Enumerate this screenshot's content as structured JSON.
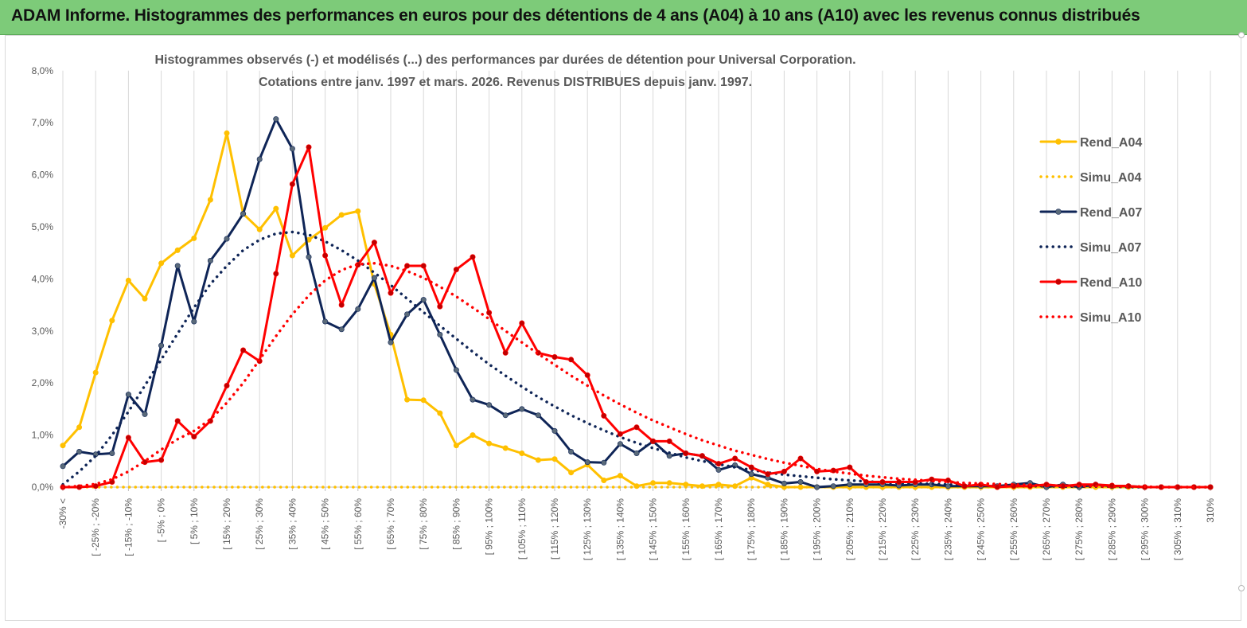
{
  "header": {
    "title": "ADAM Informe. Histogrammes des performances en euros pour des détentions de 4 ans (A04) à 10 ans (A10) avec les revenus connus distribués"
  },
  "chart_data": {
    "type": "line",
    "title_line1": "Histogrammes observés (-) et modélisés (...)  des performances par durées de détention pour Universal Corporation.",
    "title_line2": "Cotations entre janv. 1997 et mars. 2026. Revenus DISTRIBUES depuis janv. 1997.",
    "xlabel": "",
    "ylabel": "",
    "ylim": [
      0,
      8
    ],
    "y_ticks": [
      "0,0%",
      "1,0%",
      "2,0%",
      "3,0%",
      "4,0%",
      "5,0%",
      "6,0%",
      "7,0%",
      "8,0%"
    ],
    "grid": "vertical",
    "legend_position": "right",
    "x_tick_labels": [
      "-30% <",
      "[ -25% ; -20%",
      "[ -15% ; -10%",
      "[ -5% ; 0%",
      "[ 5% ; 10%",
      "[ 15% ; 20%",
      "[ 25% ; 30%",
      "[ 35% ; 40%",
      "[ 45% ; 50%",
      "[ 55% ; 60%",
      "[ 65% ; 70%",
      "[ 75% ; 80%",
      "[ 85% ; 90%",
      "[ 95% ; 100%",
      "[ 105% ; 110%",
      "[ 115% ; 120%",
      "[ 125% ; 130%",
      "[ 135% ; 140%",
      "[ 145% ; 150%",
      "[ 155% ; 160%",
      "[ 165% ; 170%",
      "[ 175% ; 180%",
      "[ 185% ; 190%",
      "[ 195% ; 200%",
      "[ 205% ; 210%",
      "[ 215% ; 220%",
      "[ 225% ; 230%",
      "[ 235% ; 240%",
      "[ 245% ; 250%",
      "[ 255% ; 260%",
      "[ 265% ; 270%",
      "[ 275% ; 280%",
      "[ 285% ; 290%",
      "[ 295% ; 300%",
      "[ 305% ; 310%"
    ],
    "x_tick_indices": [
      0,
      2,
      4,
      6,
      8,
      10,
      12,
      14,
      16,
      18,
      20,
      22,
      24,
      26,
      28,
      30,
      32,
      34,
      36,
      38,
      40,
      42,
      44,
      46,
      48,
      50,
      52,
      54,
      56,
      58,
      60,
      62,
      64,
      66,
      68
    ],
    "extra_tick_labels": [
      "310%"
    ],
    "category_count": 71,
    "series": [
      {
        "name": "Rend_A04",
        "color": "#ffc000",
        "style": "solid",
        "markers": true,
        "values": [
          0.8,
          1.15,
          2.2,
          3.2,
          3.97,
          3.62,
          4.3,
          4.55,
          4.78,
          5.52,
          6.8,
          5.25,
          4.95,
          5.35,
          4.45,
          4.75,
          4.98,
          5.23,
          5.3,
          3.9,
          2.93,
          1.68,
          1.67,
          1.42,
          0.8,
          1.0,
          0.84,
          0.75,
          0.65,
          0.52,
          0.54,
          0.28,
          0.43,
          0.13,
          0.22,
          0.02,
          0.08,
          0.08,
          0.05,
          0.02,
          0.05,
          0.02,
          0.18,
          0.05,
          0.0,
          0.0,
          0.0,
          0.0,
          0.0,
          0.0,
          0.0,
          0.0,
          0.0,
          0.0,
          0.0,
          0.0,
          0.0,
          0.0,
          0.0,
          0.0,
          0.0,
          0.0,
          0.0,
          0.0,
          0.0,
          0.0,
          0.0,
          0.0,
          0.0,
          0.0,
          0.0
        ]
      },
      {
        "name": "Simu_A04",
        "color": "#ffc000",
        "style": "dotted",
        "markers": false,
        "values": [
          0.0,
          0.0,
          0.0,
          0.0,
          0.0,
          0.0,
          0.0,
          0.0,
          0.0,
          0.0,
          0.0,
          0.0,
          0.0,
          0.0,
          0.0,
          0.0,
          0.0,
          0.0,
          0.0,
          0.0,
          0.0,
          0.0,
          0.0,
          0.0,
          0.0,
          0.0,
          0.0,
          0.0,
          0.0,
          0.0,
          0.0,
          0.0,
          0.0,
          0.0,
          0.0,
          0.0,
          0.0,
          0.0,
          0.0,
          0.0,
          0.0,
          0.0,
          0.0,
          0.0,
          0.0,
          0.0,
          0.0,
          0.0,
          0.0,
          0.0,
          0.0,
          0.0,
          0.0,
          0.0,
          0.0,
          0.0,
          0.0,
          0.0,
          0.0,
          0.0,
          0.0,
          0.0,
          0.0,
          0.0,
          0.0,
          0.0,
          0.0,
          0.0,
          0.0,
          0.0,
          0.0
        ]
      },
      {
        "name": "Rend_A07",
        "color": "#0f2557",
        "marker_color": "#5a6a7a",
        "style": "solid",
        "markers": true,
        "values": [
          0.4,
          0.68,
          0.63,
          0.65,
          1.78,
          1.4,
          2.72,
          4.25,
          3.18,
          4.35,
          4.77,
          5.25,
          6.3,
          7.07,
          6.5,
          4.42,
          3.18,
          3.03,
          3.42,
          4.02,
          2.78,
          3.32,
          3.6,
          2.93,
          2.25,
          1.68,
          1.58,
          1.38,
          1.5,
          1.38,
          1.08,
          0.68,
          0.48,
          0.47,
          0.83,
          0.65,
          0.88,
          0.6,
          0.65,
          0.6,
          0.33,
          0.42,
          0.25,
          0.18,
          0.07,
          0.1,
          0.0,
          0.02,
          0.05,
          0.05,
          0.05,
          0.03,
          0.05,
          0.05,
          0.02,
          0.02,
          0.02,
          0.02,
          0.05,
          0.08,
          0.0,
          0.05,
          0.0,
          0.05,
          0.02,
          0.02,
          0.0,
          0.0,
          0.0,
          0.0,
          0.0
        ]
      },
      {
        "name": "Simu_A07",
        "color": "#0f2557",
        "style": "dotted",
        "markers": false,
        "values": [
          0.05,
          0.3,
          0.6,
          1.0,
          1.45,
          1.95,
          2.45,
          2.95,
          3.45,
          3.9,
          4.25,
          4.55,
          4.75,
          4.87,
          4.9,
          4.85,
          4.72,
          4.55,
          4.35,
          4.12,
          3.88,
          3.62,
          3.36,
          3.1,
          2.85,
          2.6,
          2.36,
          2.14,
          1.93,
          1.73,
          1.55,
          1.38,
          1.23,
          1.09,
          0.96,
          0.85,
          0.75,
          0.66,
          0.57,
          0.5,
          0.44,
          0.38,
          0.33,
          0.28,
          0.24,
          0.21,
          0.18,
          0.15,
          0.13,
          0.11,
          0.09,
          0.08,
          0.07,
          0.06,
          0.05,
          0.04,
          0.03,
          0.03,
          0.02,
          0.02,
          0.02,
          0.01,
          0.01,
          0.01,
          0.01,
          0.0,
          0.0,
          0.0,
          0.0,
          0.0,
          0.0
        ]
      },
      {
        "name": "Rend_A10",
        "color": "#ff0000",
        "marker_color": "#c00000",
        "style": "solid",
        "markers": true,
        "values": [
          0.0,
          0.0,
          0.02,
          0.1,
          0.95,
          0.48,
          0.52,
          1.27,
          0.97,
          1.27,
          1.95,
          2.63,
          2.42,
          4.1,
          5.82,
          6.53,
          4.45,
          3.5,
          4.27,
          4.7,
          3.73,
          4.25,
          4.25,
          3.47,
          4.18,
          4.42,
          3.35,
          2.58,
          3.15,
          2.58,
          2.5,
          2.45,
          2.15,
          1.37,
          1.02,
          1.15,
          0.88,
          0.88,
          0.65,
          0.6,
          0.45,
          0.55,
          0.38,
          0.25,
          0.3,
          0.55,
          0.3,
          0.32,
          0.38,
          0.1,
          0.1,
          0.1,
          0.1,
          0.15,
          0.13,
          0.02,
          0.05,
          0.0,
          0.02,
          0.02,
          0.05,
          0.02,
          0.05,
          0.05,
          0.03,
          0.02,
          0.0,
          0.0,
          0.0,
          0.0,
          0.0
        ]
      },
      {
        "name": "Simu_A10",
        "color": "#ff0000",
        "style": "dotted",
        "markers": false,
        "values": [
          0.0,
          0.02,
          0.06,
          0.15,
          0.3,
          0.5,
          0.72,
          0.92,
          1.08,
          1.3,
          1.62,
          2.0,
          2.45,
          2.9,
          3.32,
          3.68,
          3.97,
          4.17,
          4.28,
          4.3,
          4.25,
          4.15,
          4.02,
          3.85,
          3.66,
          3.45,
          3.23,
          3.0,
          2.78,
          2.56,
          2.35,
          2.14,
          1.95,
          1.76,
          1.59,
          1.43,
          1.28,
          1.15,
          1.02,
          0.9,
          0.8,
          0.7,
          0.62,
          0.54,
          0.47,
          0.41,
          0.35,
          0.3,
          0.26,
          0.22,
          0.19,
          0.16,
          0.14,
          0.12,
          0.1,
          0.08,
          0.07,
          0.06,
          0.05,
          0.04,
          0.03,
          0.03,
          0.02,
          0.02,
          0.01,
          0.01,
          0.01,
          0.0,
          0.0,
          0.0,
          0.0
        ]
      }
    ]
  }
}
